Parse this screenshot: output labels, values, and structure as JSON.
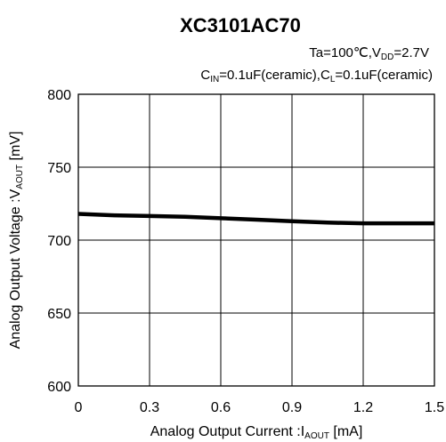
{
  "chart_data": {
    "type": "line",
    "title": "XC3101AC70",
    "conditions": {
      "line1": {
        "ta": "Ta=100℃,V",
        "vdd_sub": "DD",
        "vdd_val": "=2.7V"
      },
      "line2": {
        "cin": "C",
        "cin_sub": "IN",
        "cin_val": "=0.1uF(ceramic),C",
        "cl_sub": "L",
        "cl_val": "=0.1uF(ceramic)"
      }
    },
    "xlabel": {
      "text": "Analog Output Current :I",
      "sub": "AOUT",
      "unit": " [mA]"
    },
    "ylabel": {
      "text": "Analog Output Voltage :V",
      "sub": "AOUT",
      "unit": " [mV]"
    },
    "xlim": [
      0,
      1.5
    ],
    "ylim": [
      600,
      800
    ],
    "x_ticks": [
      "0",
      "0.3",
      "0.6",
      "0.9",
      "1.2",
      "1.5"
    ],
    "y_ticks": [
      "600",
      "650",
      "700",
      "750",
      "800"
    ],
    "grid": true,
    "series": [
      {
        "x": [
          0,
          0.15,
          0.3,
          0.45,
          0.6,
          0.75,
          0.9,
          1.05,
          1.2,
          1.35,
          1.5
        ],
        "values": [
          718,
          717,
          716.5,
          716,
          715,
          714,
          713,
          712,
          711.5,
          711.5,
          711.5
        ],
        "color": "#000000"
      }
    ]
  }
}
